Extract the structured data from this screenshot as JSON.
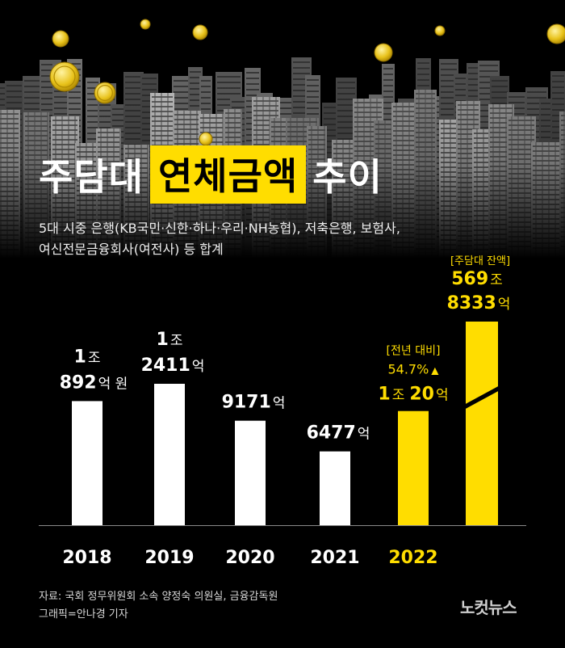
{
  "title": {
    "part1": "주담대",
    "highlight": "연체금액",
    "part2": "추이"
  },
  "subtitle": {
    "line1": "5대 시중 은행(KB국민·신한·하나·우리·NH농협), 저축은행, 보험사,",
    "line2": "여신전문금융회사(여전사) 등 합계"
  },
  "source": {
    "line1": "자료: 국회 정무위원회 소속 양정숙 의원실, 금융감독원",
    "line2": "그래픽=안나경 기자"
  },
  "logo": "노컷뉴스",
  "colors": {
    "highlight": "#ffdd00",
    "bar": "#ffffff",
    "bg": "#000000",
    "axis": "#888888"
  },
  "chart_data": {
    "type": "bar",
    "title": "주담대 연체금액 추이",
    "unit": "억 원",
    "categories": [
      "2018",
      "2019",
      "2020",
      "2021",
      "2022"
    ],
    "values": [
      10892,
      12411,
      9171,
      6477,
      10020
    ],
    "labels": [
      {
        "line1_big": "1",
        "line1_small": "조",
        "line2_big": "892",
        "line2_small": "억 원"
      },
      {
        "line1_big": "1",
        "line1_small": "조",
        "line2_big": "2411",
        "line2_small": "억"
      },
      {
        "line1_big": "",
        "line1_small": "",
        "line2_big": "9171",
        "line2_small": "억"
      },
      {
        "line1_big": "",
        "line1_small": "",
        "line2_big": "6477",
        "line2_small": "억"
      },
      {
        "line1_big": "",
        "line1_small": "",
        "line2_big": "",
        "line2_small": ""
      }
    ],
    "highlight_year": "2022",
    "yoy_annotation": {
      "bracket": "[전년 대비]",
      "change": "54.7%",
      "arrow": "▲",
      "amount_big1": "1",
      "amount_small1": "조",
      "amount_big2": "20",
      "amount_small2": "억"
    },
    "balance": {
      "bracket": "[주담대 잔액]",
      "value": 5698333,
      "line1_big": "569",
      "line1_small": "조",
      "line2_big": "8333",
      "line2_small": "억",
      "note": "axis break"
    },
    "ylim": [
      0,
      14000
    ]
  }
}
